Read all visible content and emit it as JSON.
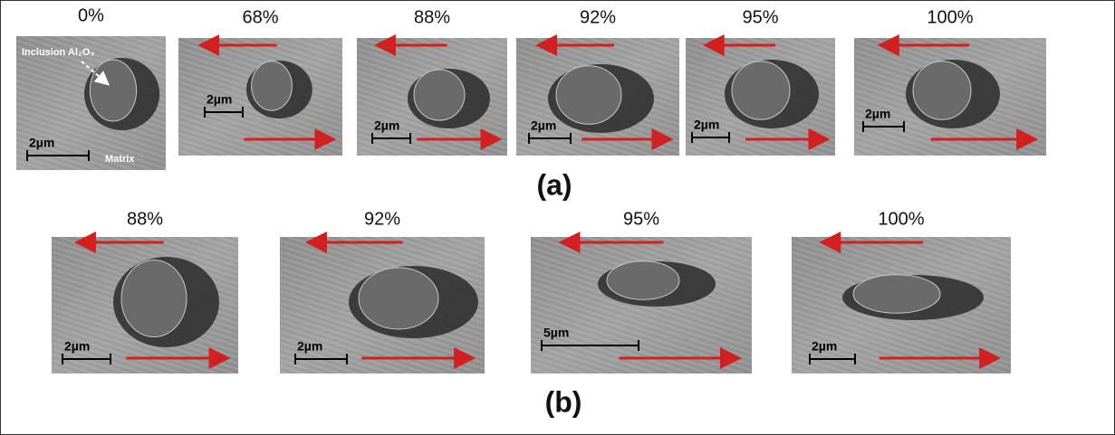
{
  "row_a": {
    "label": "(a)",
    "panels": [
      {
        "strain": "0%",
        "scale": "2µm",
        "inclusion_label": "Inclusion Al₂O₃",
        "matrix_label": "Matrix"
      },
      {
        "strain": "68%",
        "scale": "2µm"
      },
      {
        "strain": "88%",
        "scale": "2µm"
      },
      {
        "strain": "92%",
        "scale": "2µm"
      },
      {
        "strain": "95%",
        "scale": "2µm"
      },
      {
        "strain": "100%",
        "scale": "2µm"
      }
    ]
  },
  "row_b": {
    "label": "(b)",
    "panels": [
      {
        "strain": "88%",
        "scale": "2µm"
      },
      {
        "strain": "92%",
        "scale": "2µm"
      },
      {
        "strain": "95%",
        "scale": "5µm"
      },
      {
        "strain": "100%",
        "scale": "2µm"
      }
    ]
  }
}
